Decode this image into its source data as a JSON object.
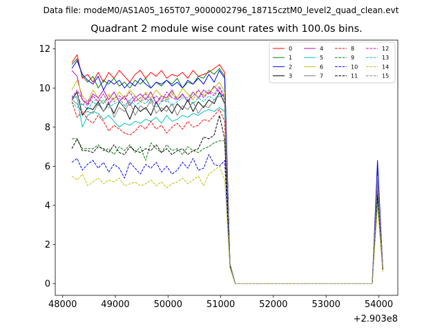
{
  "figure": {
    "suptitle": "Data file: modeM0/AS1A05_165T07_9000002796_18715cztM0_level2_quad_clean.evt"
  },
  "chart_data": {
    "type": "line",
    "title": "Quadrant 2 module wise count rates with 100.0s bins.",
    "xlabel": "",
    "ylabel": "",
    "x_offset_label": "+2.903e8",
    "xlim": [
      47860,
      54360
    ],
    "ylim": [
      -0.6,
      12.45
    ],
    "xticks": [
      48000,
      49000,
      50000,
      51000,
      52000,
      53000,
      54000
    ],
    "yticks": [
      0,
      2,
      4,
      6,
      8,
      10,
      12
    ],
    "grid": false,
    "legend": {
      "placement": "top-right",
      "ncol": 4
    },
    "x": [
      48175,
      48275,
      48375,
      48475,
      48575,
      48675,
      48775,
      48875,
      48975,
      49075,
      49175,
      49275,
      49375,
      49475,
      49575,
      49675,
      49775,
      49875,
      49975,
      50075,
      50175,
      50275,
      50375,
      50475,
      50575,
      50675,
      50775,
      50875,
      50975,
      51075,
      51175,
      51275,
      51375,
      51475,
      51575,
      51675,
      51775,
      51875,
      51975,
      52075,
      52175,
      52275,
      52375,
      52475,
      52575,
      52675,
      52775,
      52875,
      52975,
      53075,
      53175,
      53275,
      53375,
      53475,
      53575,
      53675,
      53775,
      53875,
      53975,
      54075
    ],
    "series": [
      {
        "name": "0",
        "color": "#ff0000",
        "dash": "solid",
        "values": [
          11.3,
          11.7,
          10.5,
          10.7,
          10.3,
          10.8,
          10.3,
          10.8,
          10.5,
          10.9,
          10.6,
          10.3,
          10.7,
          10.9,
          10.5,
          10.8,
          10.6,
          10.9,
          10.5,
          10.7,
          10.6,
          10.8,
          10.5,
          10.9,
          10.6,
          10.7,
          10.8,
          11.0,
          11.2,
          10.8,
          1.0,
          0,
          0,
          0,
          0,
          0,
          0,
          0,
          0,
          0,
          0,
          0,
          0,
          0,
          0,
          0,
          0,
          0,
          0,
          0,
          0,
          0,
          0,
          0,
          0,
          0,
          0,
          0,
          5.6,
          0.8
        ]
      },
      {
        "name": "1",
        "color": "#008000",
        "dash": "solid",
        "values": [
          11.2,
          11.5,
          10.6,
          10.3,
          10.6,
          10.0,
          10.4,
          10.2,
          10.5,
          10.1,
          10.3,
          10.0,
          10.4,
          10.2,
          10.5,
          10.0,
          10.3,
          10.1,
          10.4,
          10.2,
          10.5,
          10.0,
          10.3,
          10.2,
          10.6,
          10.5,
          10.9,
          10.7,
          11.0,
          10.6,
          1.0,
          0,
          0,
          0,
          0,
          0,
          0,
          0,
          0,
          0,
          0,
          0,
          0,
          0,
          0,
          0,
          0,
          0,
          0,
          0,
          0,
          0,
          0,
          0,
          0,
          0,
          0,
          0,
          5.9,
          0.8
        ]
      },
      {
        "name": "2",
        "color": "#0000ff",
        "dash": "solid",
        "values": [
          11.0,
          11.4,
          10.7,
          10.4,
          10.2,
          10.6,
          9.9,
          10.4,
          10.2,
          10.4,
          10.0,
          10.3,
          10.1,
          10.5,
          10.2,
          10.0,
          10.3,
          10.2,
          10.4,
          10.1,
          10.3,
          10.0,
          10.4,
          10.2,
          10.5,
          10.2,
          10.7,
          10.3,
          10.9,
          10.5,
          1.0,
          0,
          0,
          0,
          0,
          0,
          0,
          0,
          0,
          0,
          0,
          0,
          0,
          0,
          0,
          0,
          0,
          0,
          0,
          0,
          0,
          0,
          0,
          0,
          0,
          0,
          0,
          0,
          6.3,
          0.8
        ]
      },
      {
        "name": "3",
        "color": "#000000",
        "dash": "solid",
        "values": [
          9.4,
          9.8,
          8.6,
          9.0,
          8.9,
          9.3,
          8.8,
          9.2,
          8.7,
          9.3,
          9.0,
          8.4,
          9.1,
          8.8,
          9.0,
          8.6,
          9.3,
          8.8,
          9.1,
          8.7,
          9.2,
          8.9,
          9.4,
          8.8,
          9.3,
          9.0,
          9.4,
          9.2,
          9.8,
          9.2,
          1.0,
          0,
          0,
          0,
          0,
          0,
          0,
          0,
          0,
          0,
          0,
          0,
          0,
          0,
          0,
          0,
          0,
          0,
          0,
          0,
          0,
          0,
          0,
          0,
          0,
          0,
          0,
          0,
          5.0,
          0.8
        ]
      },
      {
        "name": "4",
        "color": "#c000c0",
        "dash": "solid",
        "values": [
          10.9,
          10.6,
          9.4,
          9.2,
          9.7,
          9.5,
          9.9,
          9.4,
          9.8,
          9.3,
          9.6,
          9.1,
          9.5,
          9.7,
          9.4,
          9.8,
          9.2,
          9.6,
          9.5,
          9.9,
          9.4,
          9.7,
          9.3,
          9.8,
          9.5,
          9.9,
          9.7,
          10.1,
          9.8,
          9.5,
          1.0,
          0,
          0,
          0,
          0,
          0,
          0,
          0,
          0,
          0,
          0,
          0,
          0,
          0,
          0,
          0,
          0,
          0,
          0,
          0,
          0,
          0,
          0,
          0,
          0,
          0,
          0,
          0,
          5.4,
          0.8
        ]
      },
      {
        "name": "5",
        "color": "#00c0c0",
        "dash": "solid",
        "values": [
          9.6,
          9.5,
          8.0,
          8.6,
          8.8,
          8.7,
          8.4,
          8.6,
          8.3,
          8.0,
          8.2,
          8.1,
          8.3,
          8.2,
          8.4,
          8.3,
          8.5,
          8.2,
          8.6,
          8.3,
          8.4,
          8.6,
          8.5,
          8.7,
          8.6,
          8.8,
          8.9,
          8.8,
          9.0,
          8.8,
          1.0,
          0,
          0,
          0,
          0,
          0,
          0,
          0,
          0,
          0,
          0,
          0,
          0,
          0,
          0,
          0,
          0,
          0,
          0,
          0,
          0,
          0,
          0,
          0,
          0,
          0,
          0,
          0,
          5.2,
          0.8
        ]
      },
      {
        "name": "6",
        "color": "#c0c000",
        "dash": "solid",
        "values": [
          9.9,
          10.4,
          9.6,
          9.3,
          9.9,
          9.5,
          9.2,
          9.7,
          9.4,
          9.8,
          9.5,
          9.9,
          9.6,
          9.3,
          9.8,
          9.5,
          9.9,
          9.6,
          9.4,
          9.8,
          9.5,
          10.0,
          9.7,
          9.4,
          9.9,
          9.6,
          9.8,
          10.0,
          10.3,
          9.8,
          1.0,
          0,
          0,
          0,
          0,
          0,
          0,
          0,
          0,
          0,
          0,
          0,
          0,
          0,
          0,
          0,
          0,
          0,
          0,
          0,
          0,
          0,
          0,
          0,
          0,
          0,
          0,
          0,
          5.5,
          0.8
        ]
      },
      {
        "name": "7",
        "color": "#808080",
        "dash": "solid",
        "values": [
          9.4,
          9.2,
          8.7,
          8.8,
          8.7,
          9.2,
          8.8,
          9.3,
          8.5,
          9.0,
          8.8,
          9.3,
          8.6,
          9.1,
          8.9,
          9.4,
          8.7,
          9.0,
          8.8,
          9.2,
          8.6,
          9.1,
          8.9,
          9.3,
          8.7,
          9.1,
          9.0,
          9.4,
          9.6,
          9.4,
          1.0,
          0,
          0,
          0,
          0,
          0,
          0,
          0,
          0,
          0,
          0,
          0,
          0,
          0,
          0,
          0,
          0,
          0,
          0,
          0,
          0,
          0,
          0,
          0,
          0,
          0,
          0,
          0,
          5.3,
          0.8
        ]
      },
      {
        "name": "8",
        "color": "#ff0000",
        "dash": "dashed",
        "values": [
          9.3,
          8.5,
          8.8,
          8.4,
          8.2,
          8.6,
          8.3,
          7.8,
          8.1,
          7.9,
          7.7,
          7.6,
          7.8,
          8.1,
          7.9,
          8.3,
          7.9,
          8.1,
          7.7,
          8.0,
          8.2,
          7.9,
          8.3,
          8.0,
          8.1,
          8.4,
          8.3,
          8.6,
          8.9,
          8.3,
          1.0,
          0,
          0,
          0,
          0,
          0,
          0,
          0,
          0,
          0,
          0,
          0,
          0,
          0,
          0,
          0,
          0,
          0,
          0,
          0,
          0,
          0,
          0,
          0,
          0,
          0,
          0,
          0,
          4.9,
          0.7
        ]
      },
      {
        "name": "9",
        "color": "#008000",
        "dash": "dashed",
        "values": [
          7.4,
          7.4,
          6.9,
          6.9,
          6.9,
          7.1,
          6.8,
          6.9,
          6.6,
          7.0,
          6.8,
          7.1,
          6.7,
          7.0,
          6.3,
          7.2,
          6.9,
          6.7,
          7.1,
          6.8,
          6.9,
          6.6,
          7.0,
          6.8,
          6.7,
          6.9,
          7.0,
          7.2,
          7.3,
          7.3,
          1.0,
          0,
          0,
          0,
          0,
          0,
          0,
          0,
          0,
          0,
          0,
          0,
          0,
          0,
          0,
          0,
          0,
          0,
          0,
          0,
          0,
          0,
          0,
          0,
          0,
          0,
          0,
          0,
          4.6,
          0.7
        ]
      },
      {
        "name": "10",
        "color": "#0000ff",
        "dash": "dashed",
        "values": [
          6.2,
          6.4,
          5.8,
          6.1,
          6.3,
          5.9,
          6.2,
          5.7,
          6.1,
          5.9,
          5.4,
          6.2,
          5.9,
          5.6,
          6.1,
          5.9,
          6.2,
          5.7,
          6.0,
          5.6,
          5.8,
          6.2,
          5.9,
          6.4,
          5.8,
          5.9,
          6.6,
          6.1,
          6.0,
          6.3,
          0.9,
          0,
          0,
          0,
          0,
          0,
          0,
          0,
          0,
          0,
          0,
          0,
          0,
          0,
          0,
          0,
          0,
          0,
          0,
          0,
          0,
          0,
          0,
          0,
          0,
          0,
          0,
          0,
          4.4,
          0.7
        ]
      },
      {
        "name": "11",
        "color": "#000000",
        "dash": "dashed",
        "values": [
          6.9,
          7.4,
          6.8,
          6.8,
          6.7,
          7.0,
          6.9,
          6.7,
          7.1,
          6.7,
          6.6,
          7.0,
          6.8,
          6.7,
          6.9,
          6.8,
          7.1,
          6.7,
          6.9,
          6.6,
          6.8,
          6.9,
          6.6,
          6.8,
          6.9,
          7.5,
          7.4,
          7.6,
          8.6,
          7.4,
          0.9,
          0,
          0,
          0,
          0,
          0,
          0,
          0,
          0,
          0,
          0,
          0,
          0,
          0,
          0,
          0,
          0,
          0,
          0,
          0,
          0,
          0,
          0,
          0,
          0,
          0,
          0,
          0,
          4.5,
          0.7
        ]
      },
      {
        "name": "12",
        "color": "#c000c0",
        "dash": "dashed",
        "values": [
          9.5,
          9.9,
          9.4,
          9.1,
          9.6,
          9.3,
          9.7,
          9.2,
          9.5,
          9.6,
          9.4,
          9.8,
          9.3,
          9.5,
          9.7,
          9.4,
          9.6,
          9.3,
          9.8,
          9.5,
          9.4,
          9.7,
          9.3,
          9.6,
          9.9,
          9.5,
          9.8,
          9.6,
          10.0,
          9.5,
          1.0,
          0,
          0,
          0,
          0,
          0,
          0,
          0,
          0,
          0,
          0,
          0,
          0,
          0,
          0,
          0,
          0,
          0,
          0,
          0,
          0,
          0,
          0,
          0,
          0,
          0,
          0,
          0,
          5.2,
          0.8
        ]
      },
      {
        "name": "13",
        "color": "#00c0c0",
        "dash": "dashed",
        "values": [
          9.3,
          9.0,
          9.2,
          8.9,
          9.3,
          9.1,
          9.4,
          9.0,
          9.2,
          9.3,
          9.0,
          9.4,
          9.1,
          9.3,
          9.2,
          9.5,
          9.0,
          9.3,
          9.4,
          9.1,
          9.3,
          9.5,
          9.4,
          9.2,
          9.5,
          9.3,
          9.6,
          9.4,
          9.7,
          9.5,
          1.0,
          0,
          0,
          0,
          0,
          0,
          0,
          0,
          0,
          0,
          0,
          0,
          0,
          0,
          0,
          0,
          0,
          0,
          0,
          0,
          0,
          0,
          0,
          0,
          0,
          0,
          0,
          0,
          5.1,
          0.8
        ]
      },
      {
        "name": "14",
        "color": "#c0c000",
        "dash": "dashed",
        "values": [
          5.5,
          5.3,
          5.6,
          5.0,
          5.2,
          5.4,
          5.1,
          5.3,
          5.2,
          5.4,
          5.0,
          5.1,
          5.2,
          5.0,
          5.1,
          5.3,
          5.0,
          5.2,
          4.9,
          5.1,
          5.2,
          5.4,
          5.1,
          5.3,
          5.5,
          5.0,
          5.6,
          5.8,
          6.0,
          5.3,
          0.8,
          0,
          0,
          0,
          0,
          0,
          0,
          0,
          0,
          0,
          0,
          0,
          0,
          0,
          0,
          0,
          0,
          0,
          0,
          0,
          0,
          0,
          0,
          0,
          0,
          0,
          0,
          0,
          4.0,
          0.6
        ]
      },
      {
        "name": "15",
        "color": "#808080",
        "dash": "dashed",
        "values": [
          9.4,
          9.6,
          9.1,
          9.4,
          9.3,
          9.5,
          9.2,
          9.6,
          9.3,
          9.5,
          9.1,
          9.4,
          9.6,
          9.3,
          9.5,
          9.2,
          9.6,
          9.4,
          9.3,
          9.7,
          9.4,
          9.6,
          9.5,
          9.8,
          9.5,
          9.7,
          9.9,
          9.7,
          10.1,
          9.6,
          1.0,
          0,
          0,
          0,
          0,
          0,
          0,
          0,
          0,
          0,
          0,
          0,
          0,
          0,
          0,
          0,
          0,
          0,
          0,
          0,
          0,
          0,
          0,
          0,
          0,
          0,
          0,
          0,
          5.3,
          0.8
        ]
      }
    ]
  }
}
